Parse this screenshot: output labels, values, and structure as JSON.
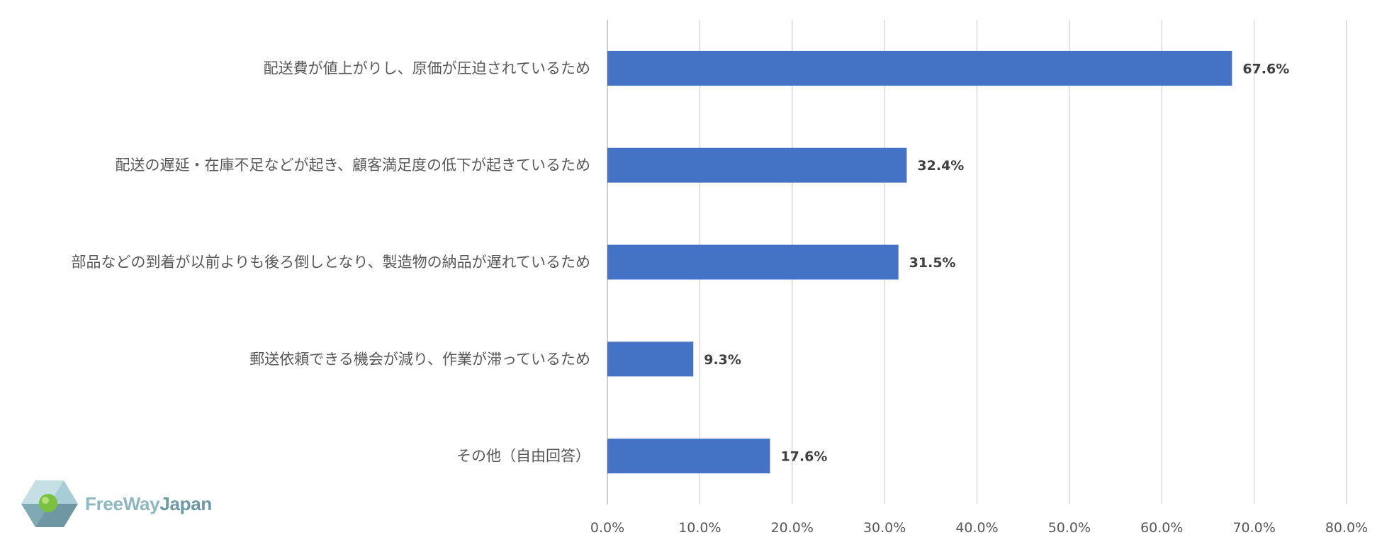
{
  "chart_data": {
    "type": "bar",
    "orientation": "horizontal",
    "categories": [
      "配送費が値上がりし、原価が圧迫されているため",
      "配送の遅延・在庫不足などが起き、顧客満足度の低下が起きているため",
      "部品などの到着が以前よりも後ろ倒しとなり、製造物の納品が遅れているため",
      "郵送依頼できる機会が減り、作業が滞っているため",
      "その他（自由回答）"
    ],
    "values": [
      67.6,
      32.4,
      31.5,
      9.3,
      17.6
    ],
    "data_labels": [
      "67.6%",
      "32.4%",
      "31.5%",
      "9.3%",
      "17.6%"
    ],
    "xlim": [
      0,
      80
    ],
    "x_ticks": [
      0,
      10,
      20,
      30,
      40,
      50,
      60,
      70,
      80
    ],
    "x_tick_labels": [
      "0.0%",
      "10.0%",
      "20.0%",
      "30.0%",
      "40.0%",
      "50.0%",
      "60.0%",
      "70.0%",
      "80.0%"
    ],
    "grid": true,
    "bar_color": "#4472c4"
  },
  "logo": {
    "text_part1": "FreeWay",
    "text_part2": "Japan"
  }
}
